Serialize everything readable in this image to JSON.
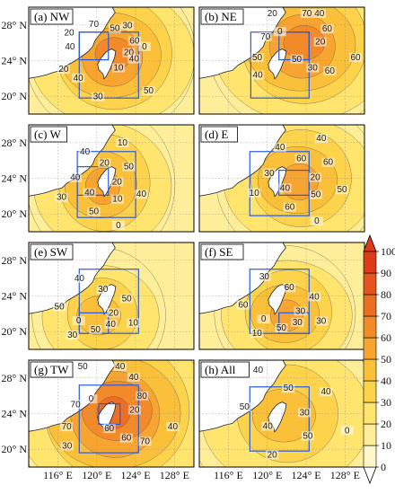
{
  "chart_data": {
    "type": "heatmap",
    "lon_ticks": [
      "116° E",
      "120° E",
      "124° E",
      "128° E"
    ],
    "lat_ticks": [
      "28° N",
      "24° N",
      "20° N"
    ],
    "colorbar": {
      "ticks": [
        "0",
        "10",
        "20",
        "30",
        "40",
        "50",
        "60",
        "70",
        "80",
        "90",
        "100"
      ],
      "colors": [
        "#ffffff",
        "#fff7c8",
        "#ffee99",
        "#ffe46e",
        "#fdd34c",
        "#fbc03a",
        "#f7a430",
        "#f28a2a",
        "#ec6e24",
        "#e5531e",
        "#dc3a18"
      ]
    },
    "panels": [
      {
        "label": "(a) NW",
        "peak": 70,
        "contour_labels": [
          "20",
          "40",
          "50",
          "50",
          "40",
          "60",
          "30",
          "70",
          "40",
          "20",
          "30",
          "10",
          "20",
          "0"
        ]
      },
      {
        "label": "(b) NE",
        "peak": 70,
        "contour_labels": [
          "20",
          "40",
          "70",
          "60",
          "70",
          "60",
          "50",
          "20",
          "60",
          "50",
          "40",
          "30",
          "0"
        ]
      },
      {
        "label": "(c) W",
        "peak": 60,
        "contour_labels": [
          "20",
          "40",
          "20",
          "10",
          "40",
          "50",
          "50",
          "40",
          "40",
          "30",
          "10",
          "0"
        ]
      },
      {
        "label": "(d) E",
        "peak": 60,
        "contour_labels": [
          "20",
          "40",
          "60",
          "50",
          "30",
          "60",
          "60",
          "40",
          "50",
          "10",
          "40",
          "0"
        ]
      },
      {
        "label": "(e) SW",
        "peak": 50,
        "contour_labels": [
          "20",
          "30",
          "30",
          "40",
          "50",
          "50",
          "50",
          "40",
          "10",
          "0"
        ]
      },
      {
        "label": "(f) SE",
        "peak": 60,
        "contour_labels": [
          "30",
          "10",
          "60",
          "30",
          "60",
          "40",
          "50",
          "30",
          "30",
          "0"
        ]
      },
      {
        "label": "(g) TW",
        "peak": 80,
        "contour_labels": [
          "20",
          "30",
          "40",
          "70",
          "70",
          "80",
          "60",
          "50",
          "40",
          "70",
          "40",
          "60",
          "0"
        ]
      },
      {
        "label": "(h) All",
        "peak": 50,
        "contour_labels": [
          "30",
          "40",
          "50",
          "50",
          "50",
          "40",
          "20",
          "40",
          "0"
        ]
      }
    ]
  }
}
